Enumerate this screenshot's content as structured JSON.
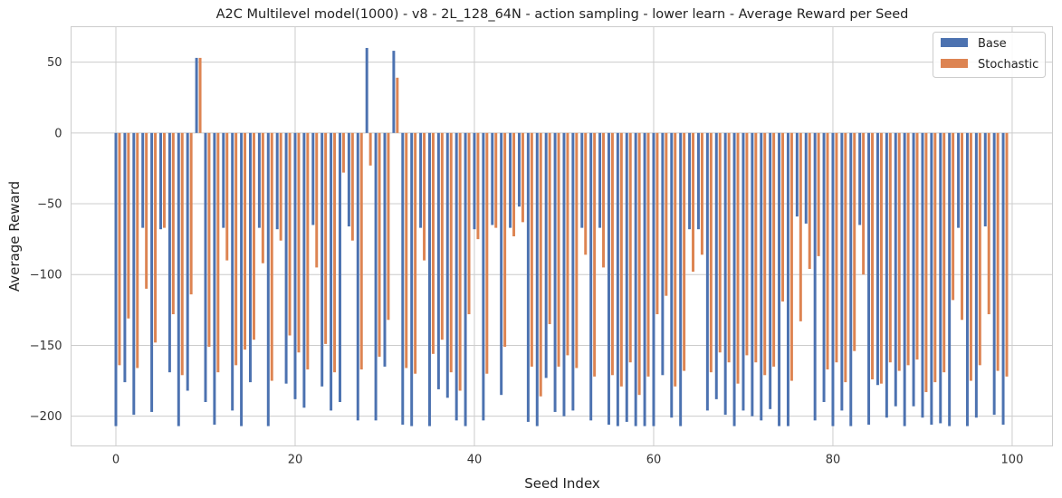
{
  "chart_data": {
    "type": "bar",
    "title": "A2C Multilevel model(1000) - v8 - 2L_128_64N - action sampling - lower learn - Average Reward per Seed",
    "xlabel": "Seed Index",
    "ylabel": "Average Reward",
    "xlim": [
      -5,
      104.5
    ],
    "ylim": [
      -221,
      75
    ],
    "xticks": [
      0,
      20,
      40,
      60,
      80,
      100
    ],
    "yticks": [
      50,
      0,
      -50,
      -100,
      -150,
      -200
    ],
    "grid": true,
    "legend_position": "top-right",
    "x": [
      0,
      1,
      2,
      3,
      4,
      5,
      6,
      7,
      8,
      9,
      10,
      11,
      12,
      13,
      14,
      15,
      16,
      17,
      18,
      19,
      20,
      21,
      22,
      23,
      24,
      25,
      26,
      27,
      28,
      29,
      30,
      31,
      32,
      33,
      34,
      35,
      36,
      37,
      38,
      39,
      40,
      41,
      42,
      43,
      44,
      45,
      46,
      47,
      48,
      49,
      50,
      51,
      52,
      53,
      54,
      55,
      56,
      57,
      58,
      59,
      60,
      61,
      62,
      63,
      64,
      65,
      66,
      67,
      68,
      69,
      70,
      71,
      72,
      73,
      74,
      75,
      76,
      77,
      78,
      79,
      80,
      81,
      82,
      83,
      84,
      85,
      86,
      87,
      88,
      89,
      90,
      91,
      92,
      93,
      94,
      95,
      96,
      97,
      98,
      99
    ],
    "series": [
      {
        "name": "Base",
        "color": "#4c72b0",
        "values": [
          -207,
          -176,
          -199,
          -67,
          -197,
          -68,
          -169,
          -207,
          -182,
          53,
          -190,
          -206,
          -67,
          -196,
          -207,
          -176,
          -67,
          -207,
          -68,
          -177,
          -188,
          -194,
          -65,
          -179,
          -196,
          -190,
          -66,
          -203,
          60,
          -203,
          -165,
          58,
          -206,
          -207,
          -67,
          -207,
          -181,
          -187,
          -203,
          -207,
          -68,
          -203,
          -65,
          -185,
          -67,
          -52,
          -204,
          -207,
          -173,
          -197,
          -200,
          -196,
          -67,
          -203,
          -67,
          -206,
          -207,
          -204,
          -207,
          -207,
          -207,
          -171,
          -201,
          -207,
          -68,
          -68,
          -196,
          -188,
          -199,
          -207,
          -196,
          -200,
          -203,
          -195,
          -207,
          -207,
          -59,
          -64,
          -203,
          -190,
          -207,
          -196,
          -207,
          -65,
          -206,
          -178,
          -201,
          -193,
          -207,
          -193,
          -201,
          -206,
          -205,
          -207,
          -67,
          -207,
          -201,
          -66,
          -199,
          -206
        ]
      },
      {
        "name": "Stochastic",
        "color": "#dd8452",
        "values": [
          -164,
          -131,
          -166,
          -110,
          -148,
          -67,
          -128,
          -171,
          -114,
          53,
          -151,
          -169,
          -90,
          -164,
          -153,
          -146,
          -92,
          -175,
          -76,
          -143,
          -155,
          -167,
          -95,
          -149,
          -169,
          -28,
          -76,
          -167,
          -23,
          -158,
          -132,
          39,
          -166,
          -170,
          -90,
          -156,
          -146,
          -169,
          -182,
          -128,
          -75,
          -170,
          -67,
          -151,
          -73,
          -63,
          -165,
          -186,
          -135,
          -165,
          -157,
          -166,
          -86,
          -172,
          -95,
          -171,
          -179,
          -162,
          -185,
          -172,
          -128,
          -115,
          -179,
          -168,
          -98,
          -86,
          -169,
          -155,
          -162,
          -177,
          -157,
          -162,
          -171,
          -165,
          -119,
          -175,
          -133,
          -96,
          -87,
          -167,
          -162,
          -176,
          -154,
          -100,
          -174,
          -177,
          -162,
          -168,
          -164,
          -160,
          -183,
          -176,
          -169,
          -118,
          -132,
          -175,
          -164,
          -128,
          -168,
          -172
        ]
      }
    ]
  }
}
